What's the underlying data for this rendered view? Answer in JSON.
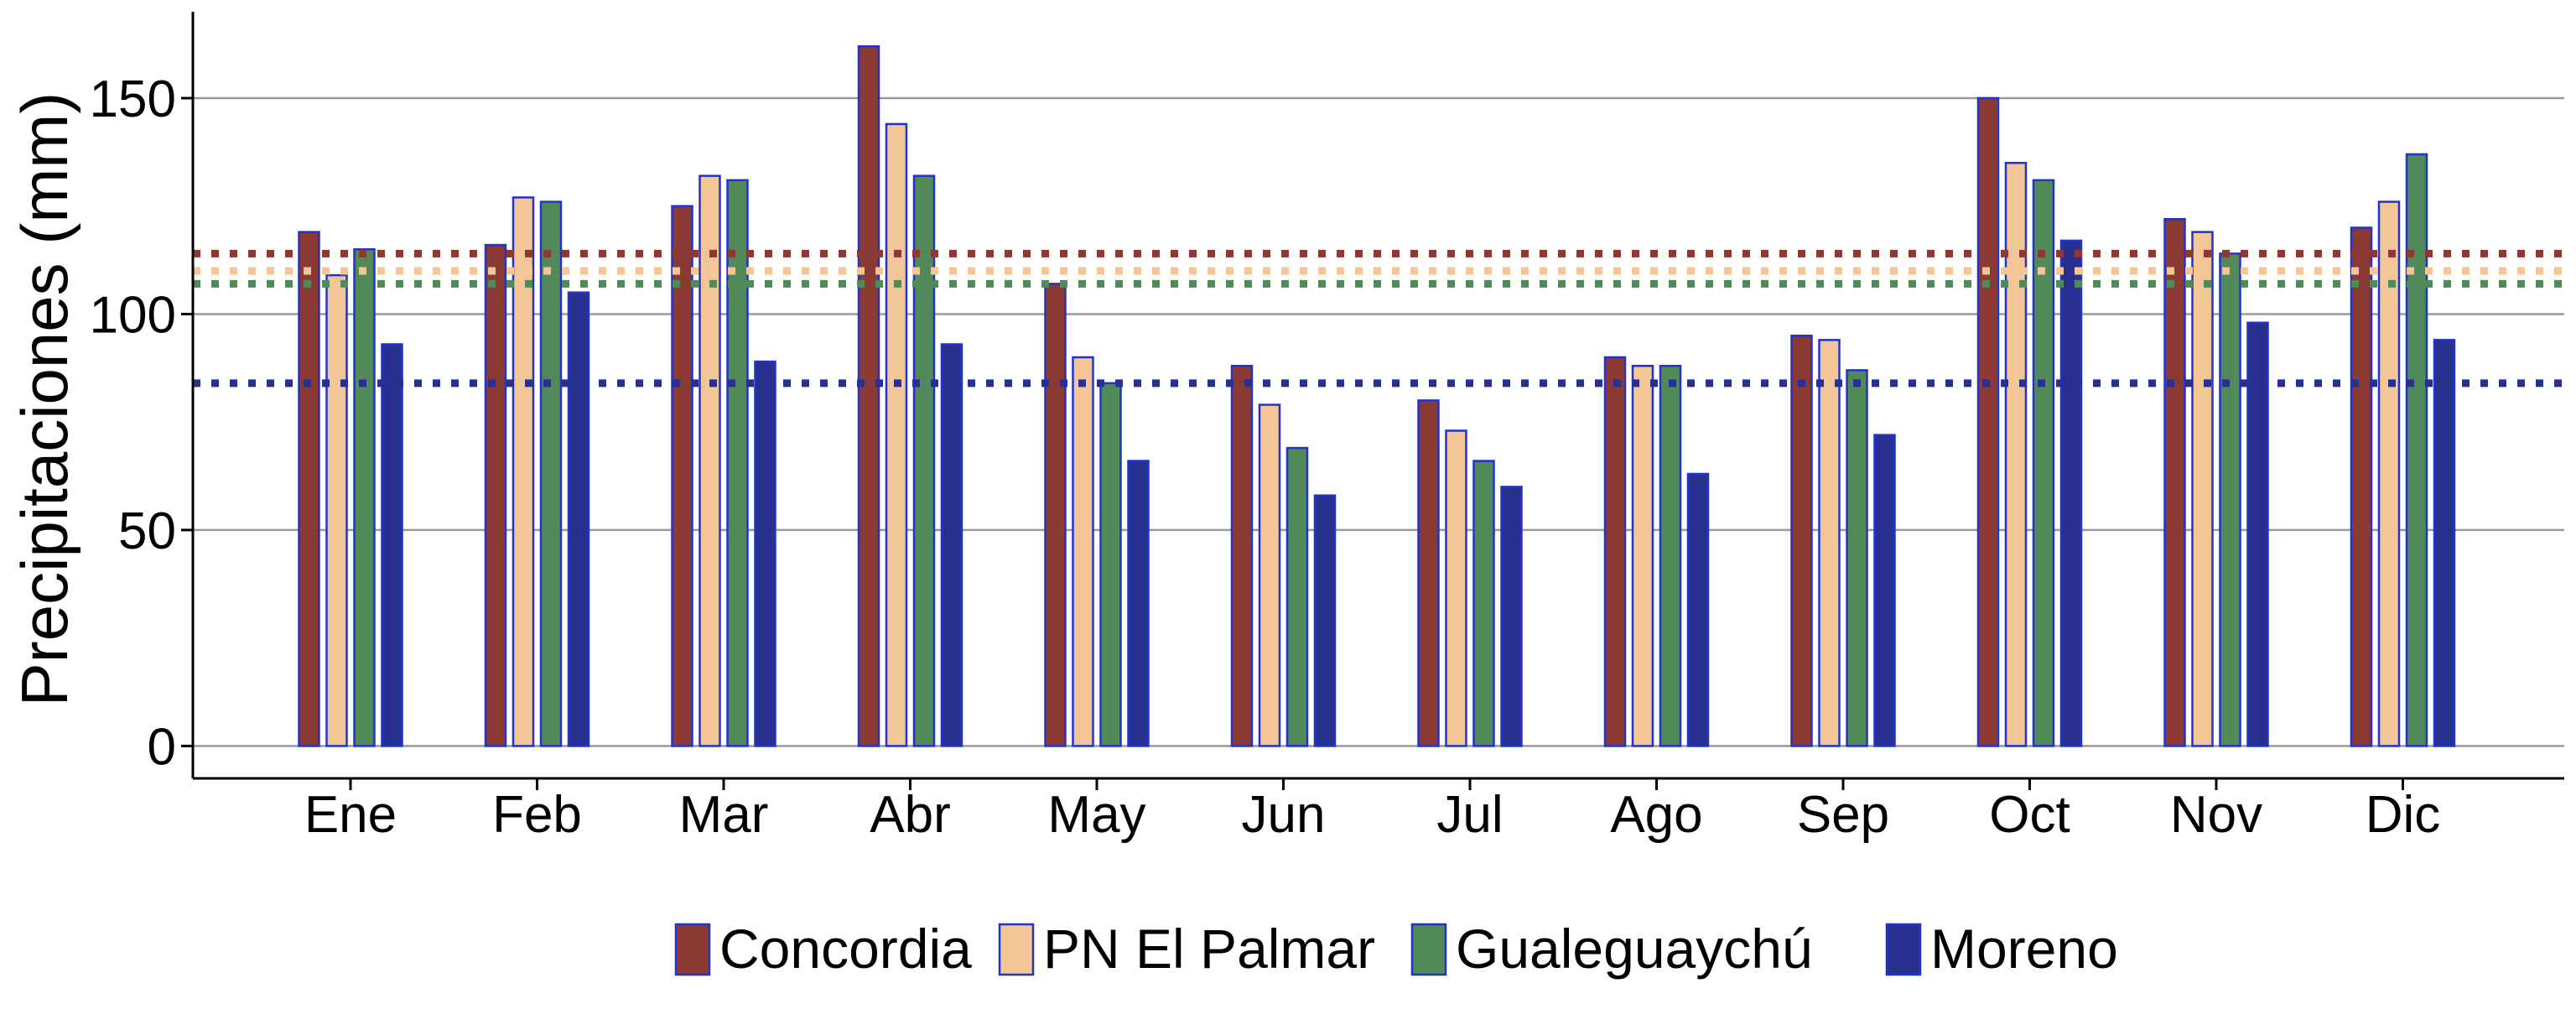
{
  "chart_data": {
    "type": "bar",
    "title": "",
    "xlabel": "",
    "ylabel": "Precipitaciones (mm)",
    "ylim": [
      -7.5,
      170
    ],
    "yticks": [
      0,
      50,
      100,
      150
    ],
    "grid": "horizontal major lines",
    "legend_position": "bottom",
    "categories": [
      "Ene",
      "Feb",
      "Mar",
      "Abr",
      "May",
      "Jun",
      "Jul",
      "Ago",
      "Sep",
      "Oct",
      "Nov",
      "Dic"
    ],
    "series": [
      {
        "name": "Concordia",
        "color": "#8b3a33",
        "values": [
          119,
          116,
          125,
          162,
          107,
          88,
          80,
          90,
          95,
          150,
          122,
          120
        ]
      },
      {
        "name": "PN El Palmar",
        "color": "#f2c696",
        "values": [
          109,
          127,
          132,
          144,
          90,
          79,
          73,
          88,
          94,
          135,
          119,
          126
        ]
      },
      {
        "name": "Gualeguaychú",
        "color": "#518a58",
        "values": [
          115,
          126,
          131,
          132,
          84,
          69,
          66,
          88,
          87,
          131,
          114,
          137
        ]
      },
      {
        "name": "Moreno",
        "color": "#27308f",
        "values": [
          93,
          105,
          89,
          93,
          66,
          58,
          60,
          63,
          72,
          117,
          98,
          94
        ]
      }
    ],
    "reference_lines": [
      {
        "series": "Concordia",
        "value": 114,
        "style": "dotted",
        "color": "#8b3a33"
      },
      {
        "series": "PN El Palmar",
        "value": 110,
        "style": "dotted",
        "color": "#f2c696"
      },
      {
        "series": "Gualeguaychú",
        "value": 107,
        "style": "dotted",
        "color": "#518a58"
      },
      {
        "series": "Moreno",
        "value": 84,
        "style": "dotted",
        "color": "#27308f"
      }
    ]
  }
}
